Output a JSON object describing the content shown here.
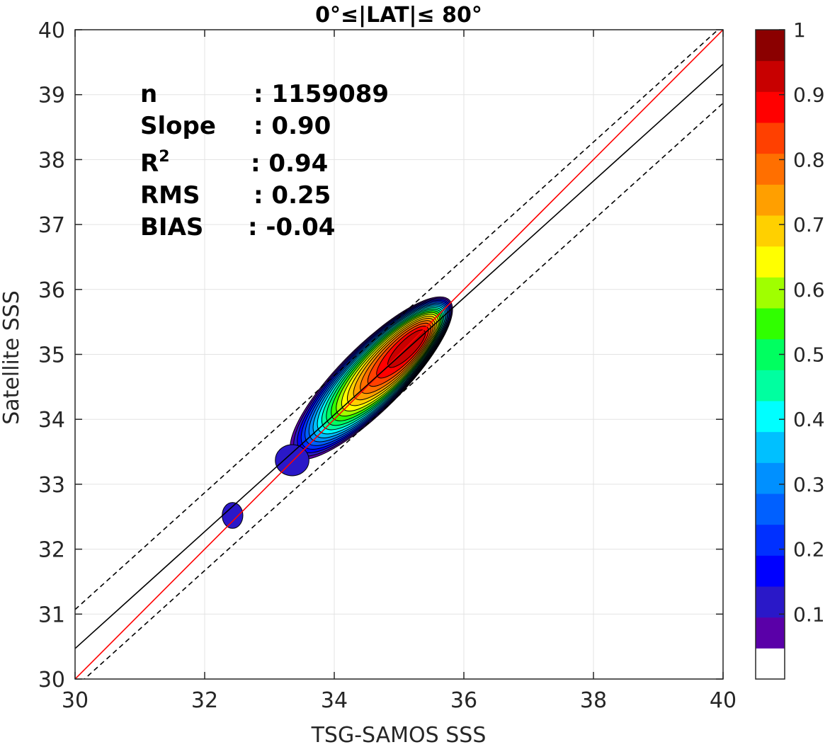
{
  "chart_data": {
    "type": "contour",
    "title": "0°≤|LAT|≤ 80°",
    "xlabel": "TSG-SAMOS SSS",
    "ylabel": "Satellite SSS",
    "xlim": [
      30,
      40
    ],
    "ylim": [
      30,
      40
    ],
    "xticks": [
      30,
      32,
      34,
      36,
      38,
      40
    ],
    "yticks": [
      30,
      31,
      32,
      33,
      34,
      35,
      36,
      37,
      38,
      39,
      40
    ],
    "grid": true,
    "stats": {
      "n_label": "n",
      "n_value": ": 1159089",
      "slope_label": "Slope",
      "slope_value": ": 0.90",
      "r2_base": "R",
      "r2_sup": "2",
      "r2_value": ": 0.94",
      "rms_label": "RMS",
      "rms_value": ": 0.25",
      "bias_label": "BIAS",
      "bias_value": ": -0.04"
    },
    "lines": [
      {
        "role": "one-to-one",
        "color": "#ff0000",
        "style": "solid",
        "slope": 1.0,
        "intercept": 0.0
      },
      {
        "role": "regression",
        "color": "#000000",
        "style": "solid",
        "slope": 0.9,
        "intercept": 3.47
      },
      {
        "role": "offset-upper",
        "color": "#000000",
        "style": "dashed",
        "slope": 0.9,
        "intercept": 4.07
      },
      {
        "role": "offset-lower",
        "color": "#000000",
        "style": "dashed",
        "slope": 0.9,
        "intercept": 2.87
      }
    ],
    "density_peak": {
      "x": 35.25,
      "y": 35.2,
      "value": 0.95
    },
    "blobs": [
      {
        "cx": 32.43,
        "cy": 32.52,
        "rx": 0.16,
        "ry": 0.2,
        "value": 0.1
      },
      {
        "cx": 33.35,
        "cy": 33.37,
        "rx": 0.26,
        "ry": 0.24,
        "value": 0.1
      }
    ],
    "colorbar": {
      "ticks": [
        0.1,
        0.2,
        0.3,
        0.4,
        0.5,
        0.6,
        0.7,
        0.8,
        0.9,
        1
      ],
      "levels": [
        0,
        0.05,
        0.1,
        0.15,
        0.2,
        0.25,
        0.3,
        0.35,
        0.4,
        0.45,
        0.5,
        0.55,
        0.6,
        0.65,
        0.7,
        0.75,
        0.8,
        0.85,
        0.9,
        0.95,
        1
      ],
      "colors": [
        "#ffffff",
        "#5a00a8",
        "#2a18c8",
        "#0000ff",
        "#0030ff",
        "#0060ff",
        "#0090ff",
        "#00c0ff",
        "#00ffff",
        "#00ffa0",
        "#00ff60",
        "#30ff00",
        "#a0ff00",
        "#ffff00",
        "#ffd000",
        "#ff9f00",
        "#ff6f00",
        "#ff4000",
        "#ff0000",
        "#c80000",
        "#8b0000"
      ]
    }
  }
}
